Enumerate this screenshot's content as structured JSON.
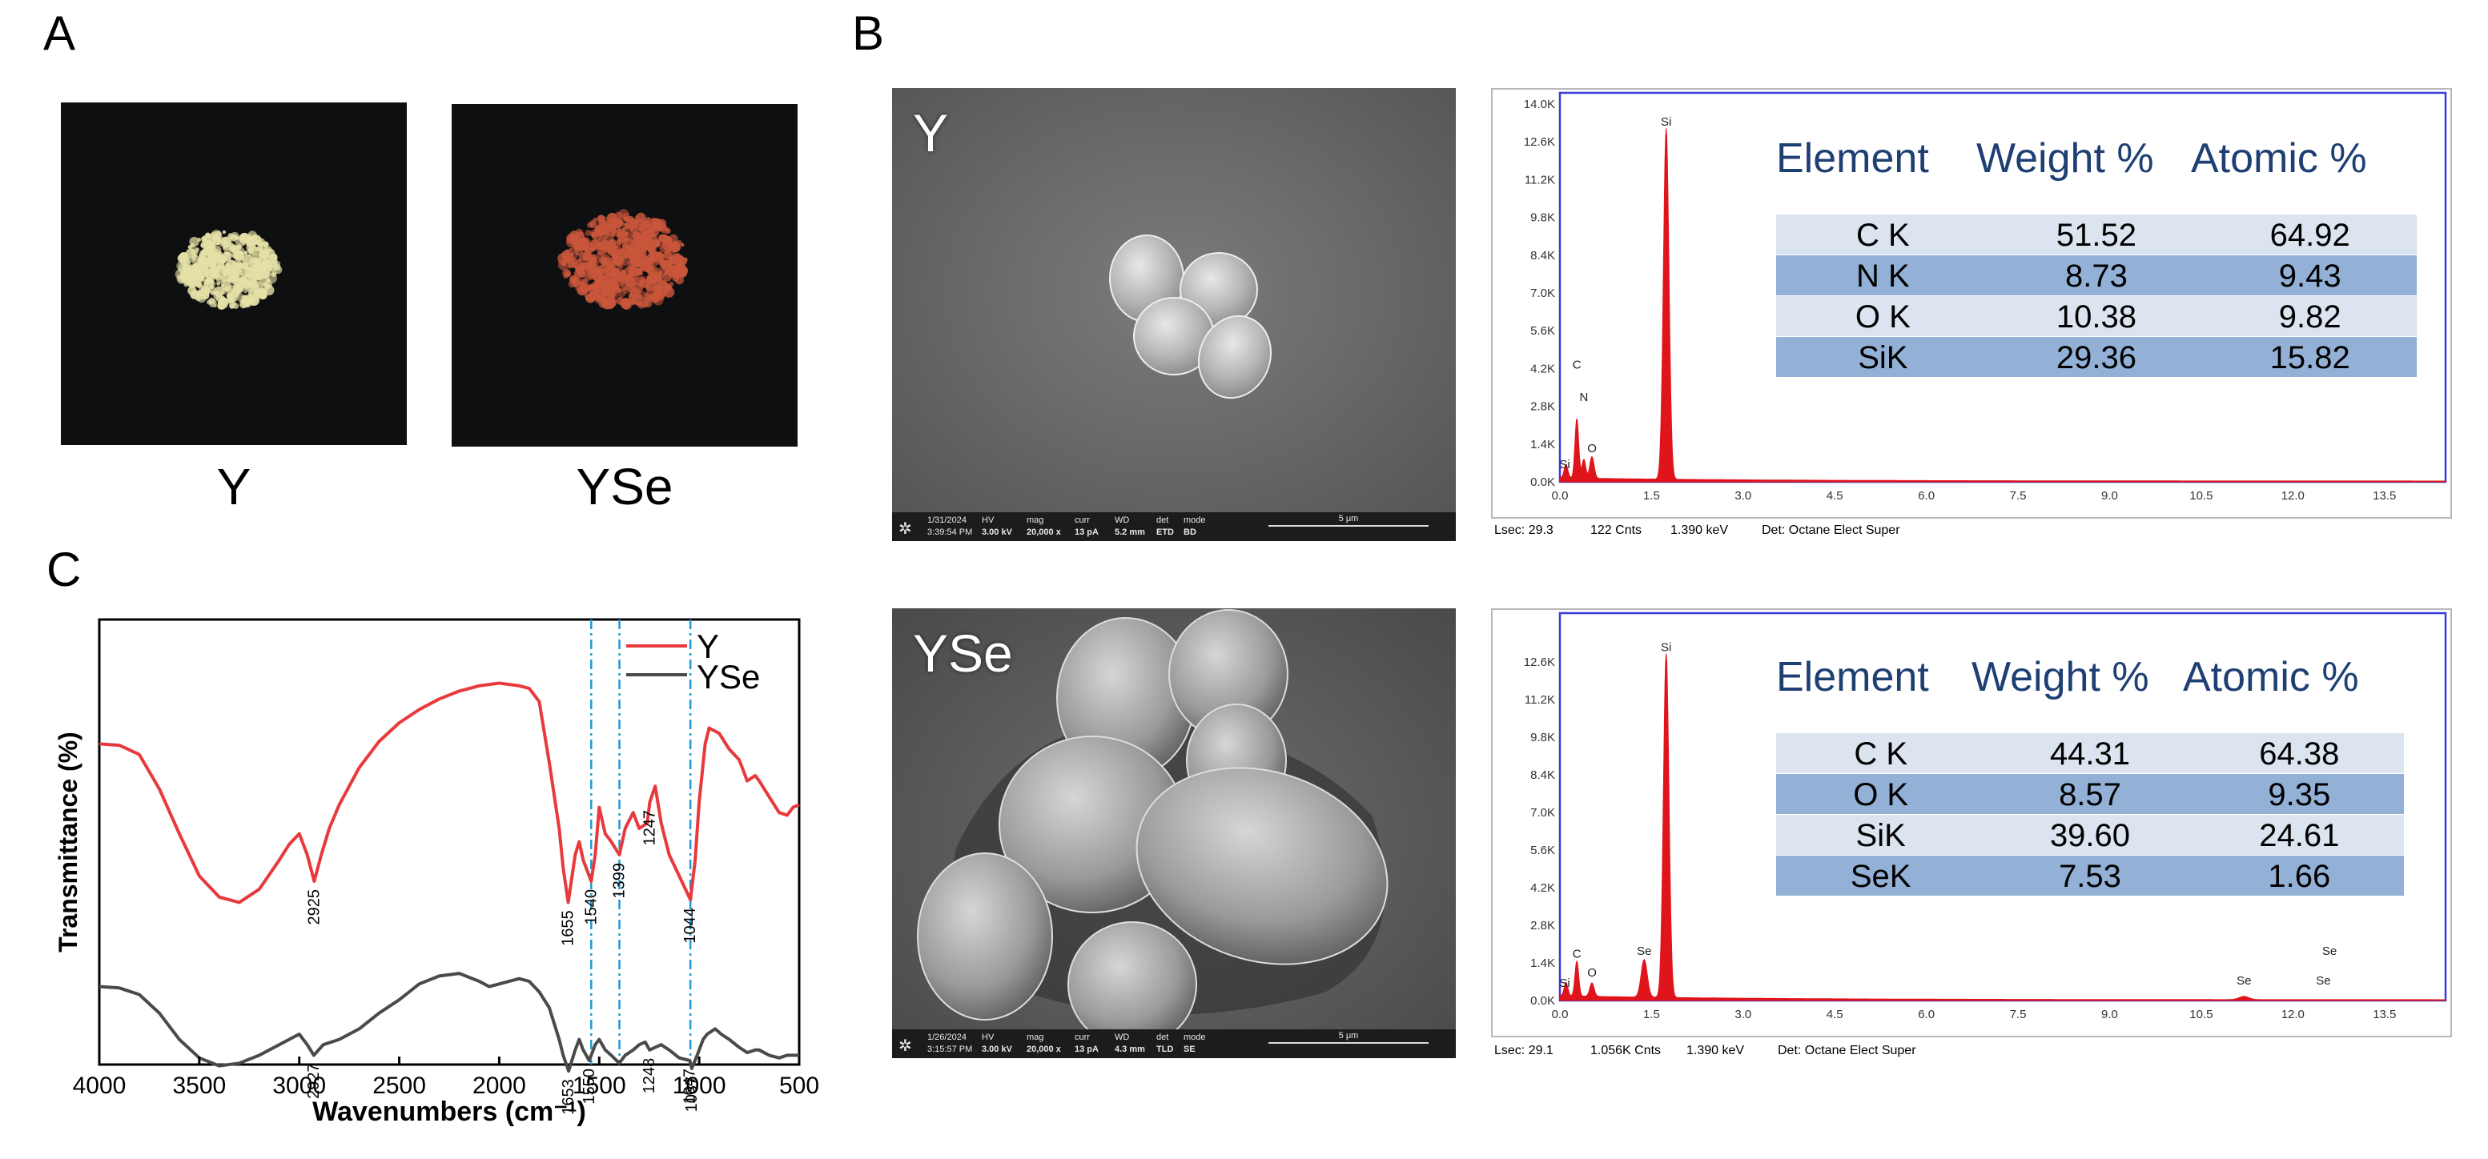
{
  "panels": {
    "a": "A",
    "b": "B",
    "c": "C"
  },
  "photos": [
    {
      "caption": "Y",
      "powder_color": "#e4e0a6"
    },
    {
      "caption": "YSe",
      "powder_color": "#c8563b"
    }
  ],
  "sem": [
    {
      "label": "Y",
      "date": "1/31/2024",
      "time": "3:39:54 PM",
      "hv_label": "HV",
      "hv": "3.00 kV",
      "mag_label": "mag",
      "mag": "20,000 x",
      "curr_label": "curr",
      "curr": "13 pA",
      "wd_label": "WD",
      "wd": "5.2 mm",
      "det_label": "det",
      "det": "ETD",
      "mode_label": "mode",
      "mode": "BD",
      "scale": "5 μm"
    },
    {
      "label": "YSe",
      "date": "1/26/2024",
      "time": "3:15:57 PM",
      "hv_label": "HV",
      "hv": "3.00 kV",
      "mag_label": "mag",
      "mag": "20,000 x",
      "curr_label": "curr",
      "curr": "13 pA",
      "wd_label": "WD",
      "wd": "4.3 mm",
      "det_label": "det",
      "det": "TLD",
      "mode_label": "mode",
      "mode": "SE",
      "scale": "5 μm"
    }
  ],
  "eds_tables": [
    {
      "headers": [
        "Element",
        "Weight %",
        "Atomic %"
      ],
      "rows": [
        [
          "C K",
          "51.52",
          "64.92"
        ],
        [
          "N K",
          "8.73",
          "9.43"
        ],
        [
          "O K",
          "10.38",
          "9.82"
        ],
        [
          "SiK",
          "29.36",
          "15.82"
        ]
      ],
      "footer": {
        "lsec": "Lsec: 29.3",
        "cnts": "122 Cnts",
        "kev": "1.390 keV",
        "det": "Det: Octane Elect Super"
      }
    },
    {
      "headers": [
        "Element",
        "Weight %",
        "Atomic %"
      ],
      "rows": [
        [
          "C K",
          "44.31",
          "64.38"
        ],
        [
          "O K",
          "8.57",
          "9.35"
        ],
        [
          "SiK",
          "39.60",
          "24.61"
        ],
        [
          "SeK",
          "7.53",
          "1.66"
        ]
      ],
      "footer": {
        "lsec": "Lsec: 29.1",
        "cnts": "1.056K Cnts",
        "kev": "1.390 keV",
        "det": "Det: Octane Elect Super"
      }
    }
  ],
  "colors": {
    "ftir_y": "#e8393d",
    "ftir_yse": "#4a4a4a",
    "ftir_guide": "#1f9ad6",
    "eds_fill": "#e0141b",
    "eds_frame": "#3a3ad8",
    "table_row_light": "#dbe4ef",
    "table_row_dark": "#93b1d6",
    "table_header": "#1e3f73"
  },
  "chart_data": [
    {
      "type": "line",
      "panel": "C",
      "xlabel": "Wavenumbers (cm⁻¹)",
      "ylabel": "Transmittance (%)",
      "xlim": [
        4000,
        500
      ],
      "x_reversed": true,
      "xticks": [
        "4000",
        "3500",
        "3000",
        "2500",
        "2000",
        "1500",
        "1000",
        "500"
      ],
      "xtick_values": [
        4000,
        3500,
        3000,
        2500,
        2000,
        1500,
        1000,
        500
      ],
      "yticks_shown": false,
      "legend": "top-right",
      "guide_lines": [
        1540,
        1399,
        1044
      ],
      "series": [
        {
          "name": "Y",
          "color": "#e8393d",
          "points": [
            [
              4000,
              38
            ],
            [
              3900,
              38.5
            ],
            [
              3800,
              42
            ],
            [
              3700,
              55
            ],
            [
              3600,
              72
            ],
            [
              3500,
              88
            ],
            [
              3400,
              96
            ],
            [
              3300,
              98
            ],
            [
              3200,
              93
            ],
            [
              3100,
              82
            ],
            [
              3050,
              76
            ],
            [
              3000,
              72
            ],
            [
              2960,
              80
            ],
            [
              2925,
              90
            ],
            [
              2890,
              80
            ],
            [
              2850,
              70
            ],
            [
              2800,
              61
            ],
            [
              2700,
              47
            ],
            [
              2600,
              37
            ],
            [
              2500,
              30
            ],
            [
              2400,
              25
            ],
            [
              2300,
              21
            ],
            [
              2200,
              18
            ],
            [
              2100,
              16
            ],
            [
              2000,
              15
            ],
            [
              1900,
              16
            ],
            [
              1850,
              17
            ],
            [
              1800,
              22
            ],
            [
              1750,
              45
            ],
            [
              1700,
              70
            ],
            [
              1680,
              85
            ],
            [
              1655,
              98
            ],
            [
              1620,
              80
            ],
            [
              1600,
              75
            ],
            [
              1580,
              82
            ],
            [
              1540,
              90
            ],
            [
              1520,
              80
            ],
            [
              1500,
              62
            ],
            [
              1470,
              72
            ],
            [
              1440,
              75
            ],
            [
              1399,
              80
            ],
            [
              1370,
              70
            ],
            [
              1330,
              64
            ],
            [
              1300,
              70
            ],
            [
              1260,
              68
            ],
            [
              1247,
              60
            ],
            [
              1220,
              54
            ],
            [
              1190,
              68
            ],
            [
              1150,
              80
            ],
            [
              1100,
              88
            ],
            [
              1044,
              97
            ],
            [
              1020,
              82
            ],
            [
              1000,
              60
            ],
            [
              970,
              38
            ],
            [
              950,
              32
            ],
            [
              900,
              34
            ],
            [
              850,
              40
            ],
            [
              800,
              44
            ],
            [
              760,
              52
            ],
            [
              720,
              50
            ],
            [
              700,
              52
            ],
            [
              650,
              58
            ],
            [
              600,
              64
            ],
            [
              560,
              65
            ],
            [
              530,
              62
            ],
            [
              500,
              61
            ]
          ]
        },
        {
          "name": "YSe",
          "color": "#4a4a4a",
          "points": [
            [
              4000,
              62
            ],
            [
              3900,
              62.5
            ],
            [
              3800,
              65
            ],
            [
              3700,
              72
            ],
            [
              3600,
              82
            ],
            [
              3500,
              89
            ],
            [
              3400,
              92
            ],
            [
              3300,
              91
            ],
            [
              3200,
              88
            ],
            [
              3100,
              84
            ],
            [
              3000,
              80
            ],
            [
              2960,
              84
            ],
            [
              2927,
              88
            ],
            [
              2880,
              84
            ],
            [
              2800,
              82
            ],
            [
              2700,
              78
            ],
            [
              2600,
              72
            ],
            [
              2500,
              67
            ],
            [
              2400,
              61
            ],
            [
              2300,
              58
            ],
            [
              2200,
              57
            ],
            [
              2100,
              60
            ],
            [
              2050,
              62
            ],
            [
              2000,
              61
            ],
            [
              1900,
              59
            ],
            [
              1850,
              60
            ],
            [
              1800,
              64
            ],
            [
              1750,
              70
            ],
            [
              1700,
              82
            ],
            [
              1680,
              88
            ],
            [
              1653,
              94
            ],
            [
              1620,
              86
            ],
            [
              1600,
              82
            ],
            [
              1580,
              86
            ],
            [
              1550,
              90
            ],
            [
              1520,
              84
            ],
            [
              1500,
              82
            ],
            [
              1470,
              86
            ],
            [
              1440,
              88
            ],
            [
              1400,
              91
            ],
            [
              1370,
              88
            ],
            [
              1330,
              86
            ],
            [
              1300,
              84
            ],
            [
              1270,
              83
            ],
            [
              1248,
              86
            ],
            [
              1220,
              85
            ],
            [
              1190,
              84
            ],
            [
              1150,
              86
            ],
            [
              1100,
              89
            ],
            [
              1047,
              90
            ],
            [
              1037,
              93
            ],
            [
              1010,
              88
            ],
            [
              980,
              82
            ],
            [
              960,
              80
            ],
            [
              920,
              78
            ],
            [
              890,
              80
            ],
            [
              850,
              82
            ],
            [
              800,
              85
            ],
            [
              760,
              87
            ],
            [
              720,
              86
            ],
            [
              700,
              86
            ],
            [
              650,
              88
            ],
            [
              600,
              89
            ],
            [
              560,
              88
            ],
            [
              530,
              88
            ],
            [
              500,
              88
            ]
          ]
        }
      ],
      "annotations": [
        {
          "series": "Y",
          "x": 2925,
          "text": "2925"
        },
        {
          "series": "Y",
          "x": 1655,
          "text": "1655"
        },
        {
          "series": "Y",
          "x": 1540,
          "text": "1540"
        },
        {
          "series": "Y",
          "x": 1399,
          "text": "1399"
        },
        {
          "series": "Y",
          "x": 1247,
          "text": "1247"
        },
        {
          "series": "Y",
          "x": 1044,
          "text": "1044"
        },
        {
          "series": "YSe",
          "x": 2927,
          "text": "2927"
        },
        {
          "series": "YSe",
          "x": 1653,
          "text": "1653"
        },
        {
          "series": "YSe",
          "x": 1550,
          "text": "1550"
        },
        {
          "series": "YSe",
          "x": 1047,
          "text": "1047"
        },
        {
          "series": "YSe",
          "x": 1248,
          "text": "1248"
        },
        {
          "series": "YSe",
          "x": 1037,
          "text": "1037"
        }
      ]
    },
    {
      "type": "area",
      "panel": "B-top",
      "xlim": [
        0,
        14.5
      ],
      "ylim": [
        0,
        14000
      ],
      "xticks": [
        "0.0",
        "1.5",
        "3.0",
        "4.5",
        "6.0",
        "7.5",
        "9.0",
        "10.5",
        "12.0",
        "13.5"
      ],
      "xtick_values": [
        0,
        1.5,
        3,
        4.5,
        6,
        7.5,
        9,
        10.5,
        12,
        13.5
      ],
      "yticks": [
        "0.0K",
        "1.4K",
        "2.8K",
        "4.2K",
        "5.6K",
        "7.0K",
        "8.4K",
        "9.8K",
        "11.2K",
        "12.6K",
        "14.0K"
      ],
      "ytick_values": [
        0,
        1400,
        2800,
        4200,
        5600,
        7000,
        8400,
        9800,
        11200,
        12600,
        14000
      ],
      "peaks": [
        {
          "x": 0.1,
          "y": 500,
          "width": 0.03
        },
        {
          "x": 0.277,
          "y": 2200,
          "width": 0.03
        },
        {
          "x": 0.392,
          "y": 700,
          "width": 0.03
        },
        {
          "x": 0.525,
          "y": 800,
          "width": 0.035
        },
        {
          "x": 1.74,
          "y": 13000,
          "width": 0.045
        }
      ],
      "baseline": 120,
      "peak_labels": [
        {
          "x": 0.277,
          "y": 4200,
          "text": "C"
        },
        {
          "x": 0.392,
          "y": 3000,
          "text": "N"
        },
        {
          "x": 0.525,
          "y": 1100,
          "text": "O"
        },
        {
          "x": 0.08,
          "y": 500,
          "text": "Si"
        },
        {
          "x": 1.74,
          "y": 13200,
          "text": "Si"
        }
      ]
    },
    {
      "type": "area",
      "panel": "B-bottom",
      "xlim": [
        0,
        14.5
      ],
      "ylim": [
        0,
        14000
      ],
      "xticks": [
        "0.0",
        "1.5",
        "3.0",
        "4.5",
        "6.0",
        "7.5",
        "9.0",
        "10.5",
        "12.0",
        "13.5"
      ],
      "xtick_values": [
        0,
        1.5,
        3,
        4.5,
        6,
        7.5,
        9,
        10.5,
        12,
        13.5
      ],
      "yticks": [
        "0.0K",
        "1.4K",
        "2.8K",
        "4.2K",
        "5.6K",
        "7.0K",
        "8.4K",
        "9.8K",
        "11.2K",
        "12.6K"
      ],
      "ytick_values": [
        0,
        1400,
        2800,
        4200,
        5600,
        7000,
        8400,
        9800,
        11200,
        12600
      ],
      "peaks": [
        {
          "x": 0.1,
          "y": 500,
          "width": 0.03
        },
        {
          "x": 0.277,
          "y": 1300,
          "width": 0.03
        },
        {
          "x": 0.525,
          "y": 500,
          "width": 0.035
        },
        {
          "x": 1.38,
          "y": 1400,
          "width": 0.05
        },
        {
          "x": 1.74,
          "y": 12800,
          "width": 0.045
        },
        {
          "x": 11.2,
          "y": 120,
          "width": 0.08
        }
      ],
      "baseline": 150,
      "peak_labels": [
        {
          "x": 0.08,
          "y": 500,
          "text": "Si"
        },
        {
          "x": 0.277,
          "y": 1600,
          "text": "C"
        },
        {
          "x": 0.525,
          "y": 900,
          "text": "O"
        },
        {
          "x": 1.38,
          "y": 1700,
          "text": "Se"
        },
        {
          "x": 1.74,
          "y": 13000,
          "text": "Si"
        },
        {
          "x": 11.2,
          "y": 600,
          "text": "Se"
        },
        {
          "x": 12.5,
          "y": 600,
          "text": "Se"
        },
        {
          "x": 12.6,
          "y": 1700,
          "text": "Se"
        }
      ]
    }
  ]
}
